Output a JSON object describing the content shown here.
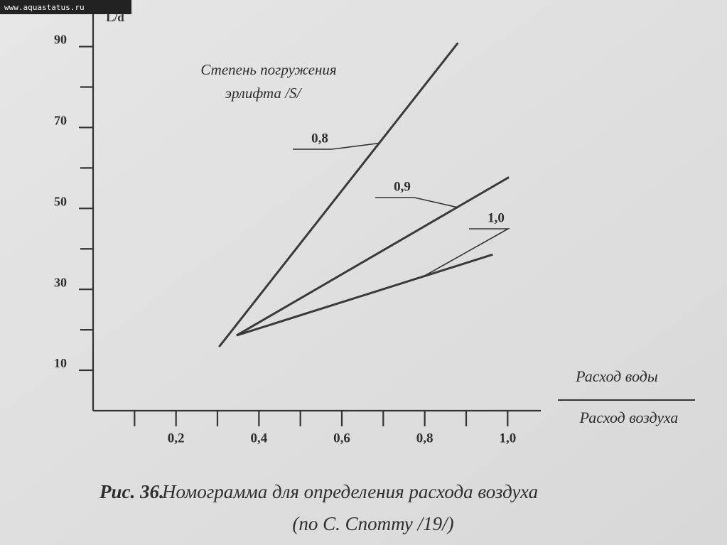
{
  "watermark": "www.aquastatus.ru",
  "chart_data": {
    "type": "line",
    "figure_label": "Рис. 36.",
    "title": "Номограмма для определения расхода воздуха",
    "subtitle": "(по С. Спотту /19/)",
    "y_label": "L/d",
    "x_label_top": "Расход воды",
    "x_label_bottom": "Расход воздуха",
    "legend_title": [
      "Степень погружения",
      "эрлифта /S/"
    ],
    "xlim": [
      0,
      1.08
    ],
    "ylim": [
      0,
      98
    ],
    "xticks": [
      {
        "value": 0.2,
        "label": "0,2"
      },
      {
        "value": 0.4,
        "label": "0,4"
      },
      {
        "value": 0.6,
        "label": "0,6"
      },
      {
        "value": 0.8,
        "label": "0,8"
      },
      {
        "value": 1.0,
        "label": "1,0"
      }
    ],
    "xminor_ticks": [
      0.1,
      0.3,
      0.5,
      0.7,
      0.9
    ],
    "yticks": [
      10,
      30,
      50,
      70,
      90
    ],
    "yminor_ticks": [
      20,
      40,
      60,
      80
    ],
    "series": [
      {
        "name": "0,8",
        "color": "#3a3a3a",
        "x": [
          0.304,
          0.88
        ],
        "values": [
          15.8,
          90.9
        ]
      },
      {
        "name": "0,9",
        "color": "#3a3a3a",
        "x": [
          0.346,
          1.003
        ],
        "values": [
          18.6,
          57.7
        ]
      },
      {
        "name": "1,0",
        "color": "#3a3a3a",
        "x": [
          0.346,
          0.964
        ],
        "values": [
          18.6,
          38.6
        ]
      }
    ]
  }
}
